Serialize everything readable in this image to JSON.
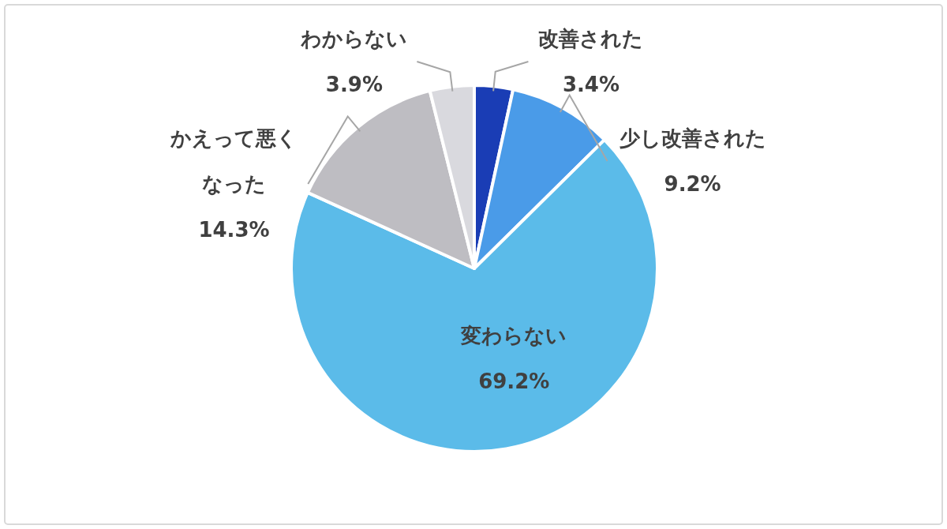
{
  "chart_data": {
    "type": "pie",
    "categories": [
      "改善された",
      "少し改善された",
      "変わらない",
      "かえって悪くなった",
      "わからない"
    ],
    "values": [
      3.4,
      9.2,
      69.2,
      14.3,
      3.9
    ],
    "colors": [
      "#1a3db5",
      "#4a9be8",
      "#5bbbe9",
      "#bebdc2",
      "#d9d9de"
    ],
    "value_labels": [
      "3.4%",
      "9.2%",
      "69.2%",
      "14.3%",
      "3.9%"
    ]
  }
}
